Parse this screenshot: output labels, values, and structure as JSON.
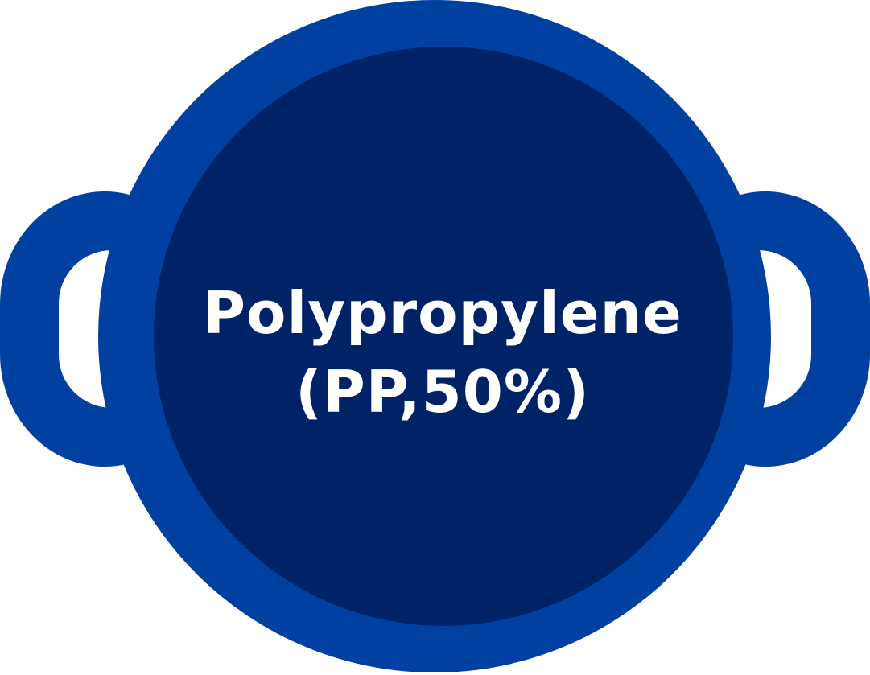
{
  "badge": {
    "line1": "Polypropylene",
    "line2": "(PP,50%)"
  },
  "colors": {
    "outer_ring": "#0040A0",
    "inner_disc": "#002266",
    "handle_inner": "#ffffff",
    "text": "#ffffff"
  },
  "icon": "cooking-pot-icon"
}
